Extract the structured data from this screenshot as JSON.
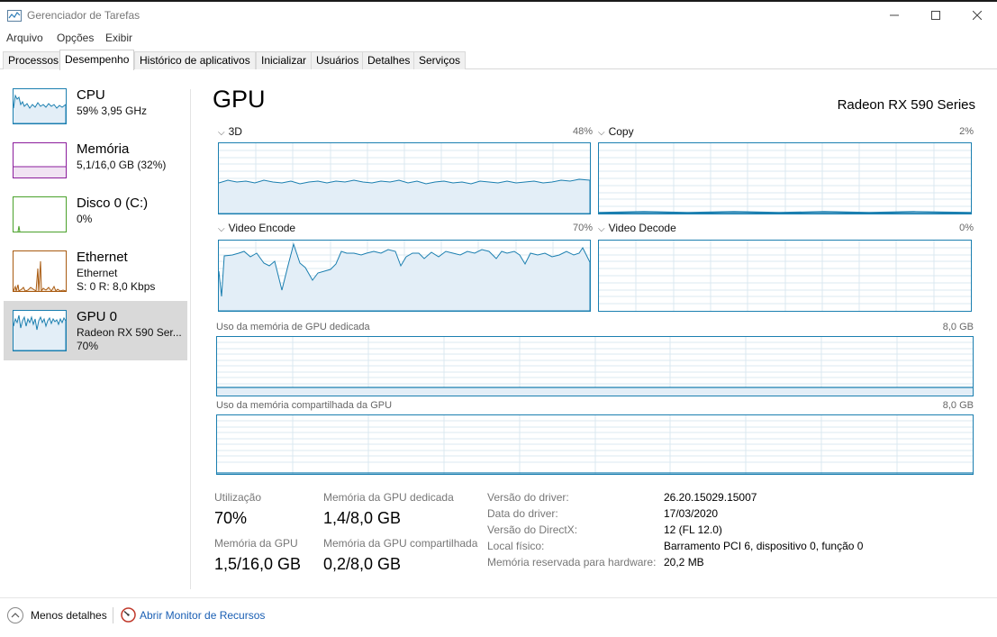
{
  "window": {
    "title": "Gerenciador de Tarefas"
  },
  "menu": [
    "Arquivo",
    "Opções",
    "Exibir"
  ],
  "tabs": [
    "Processos",
    "Desempenho",
    "Histórico de aplicativos",
    "Inicializar",
    "Usuários",
    "Detalhes",
    "Serviços"
  ],
  "active_tab": "Desempenho",
  "sidebar": [
    {
      "title": "CPU",
      "line1": "59% 3,95 GHz",
      "line2": "",
      "color": "#1b7fb0"
    },
    {
      "title": "Memória",
      "line1": "5,1/16,0 GB (32%)",
      "line2": "",
      "color": "#8b1c9c"
    },
    {
      "title": "Disco 0 (C:)",
      "line1": "0%",
      "line2": "",
      "color": "#4aa12a"
    },
    {
      "title": "Ethernet",
      "line1": "Ethernet",
      "line2": "S: 0 R: 8,0 Kbps",
      "color": "#a85a10"
    },
    {
      "title": "GPU 0",
      "line1": "Radeon RX 590 Ser...",
      "line2": "70%",
      "color": "#1b7fb0",
      "selected": true
    }
  ],
  "main": {
    "title": "GPU",
    "device": "Radeon RX 590 Series",
    "engines": [
      {
        "label": "3D",
        "value": "48%"
      },
      {
        "label": "Copy",
        "value": "2%"
      },
      {
        "label": "Video Encode",
        "value": "70%"
      },
      {
        "label": "Video Decode",
        "value": "0%"
      }
    ],
    "dedicated": {
      "label": "Uso da memória de GPU dedicada",
      "max": "8,0 GB"
    },
    "shared": {
      "label": "Uso da memória compartilhada da GPU",
      "max": "8,0 GB"
    },
    "stats": [
      {
        "label": "Utilização",
        "value": "70%"
      },
      {
        "label": "Memória da GPU dedicada",
        "value": "1,4/8,0 GB"
      },
      {
        "label": "Memória da GPU",
        "value": "1,5/16,0 GB"
      },
      {
        "label": "Memória da GPU compartilhada",
        "value": "0,2/8,0 GB"
      }
    ],
    "info": [
      {
        "label": "Versão do driver:",
        "value": "26.20.15029.15007"
      },
      {
        "label": "Data do driver:",
        "value": "17/03/2020"
      },
      {
        "label": "Versão do DirectX:",
        "value": "12 (FL 12.0)"
      },
      {
        "label": "Local físico:",
        "value": "Barramento PCI 6, dispositivo 0, função 0"
      },
      {
        "label": "Memória reservada para hardware:",
        "value": "20,2 MB"
      }
    ]
  },
  "footer": {
    "less": "Menos detalhes",
    "monitor": "Abrir Monitor de Recursos"
  },
  "colors": {
    "accent": "#1b7fb0",
    "link": "#1a5fb4"
  }
}
